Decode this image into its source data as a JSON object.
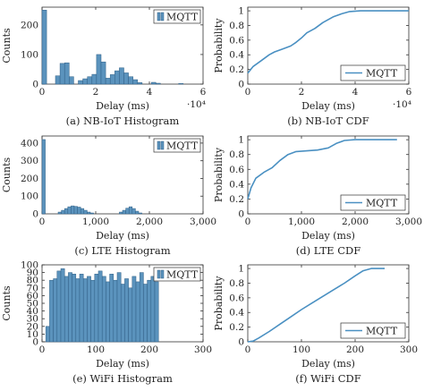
{
  "colors": {
    "series": "#4a90c2",
    "bar_fill": "#5b93bd",
    "bar_edge": "#2f5f86"
  },
  "chart_data": [
    {
      "id": "a",
      "type": "bar",
      "caption": "(a) NB-IoT Histogram",
      "xlabel": "Delay (ms)",
      "ylabel": "Counts",
      "x_exponent": "·10⁴",
      "xlim": [
        0,
        60000
      ],
      "ylim": [
        0,
        260
      ],
      "xticks": [
        0,
        20000,
        40000,
        60000
      ],
      "xtick_labels": [
        "0",
        "2",
        "4",
        "6"
      ],
      "yticks": [
        0,
        100,
        200
      ],
      "ytick_labels": [
        "0",
        "100",
        "200"
      ],
      "legend": "MQTT",
      "bin_width": 1700,
      "bin_starts": [
        0,
        5000,
        6700,
        8400,
        10100,
        13500,
        15200,
        16900,
        18600,
        20300,
        22000,
        23700,
        25400,
        27100,
        28800,
        30500,
        32200,
        33900,
        35600,
        40700,
        42400,
        50900
      ],
      "values": [
        250,
        28,
        70,
        72,
        25,
        12,
        18,
        25,
        33,
        100,
        75,
        20,
        32,
        45,
        55,
        38,
        25,
        15,
        5,
        6,
        3,
        2
      ]
    },
    {
      "id": "b",
      "type": "line",
      "caption": "(b) NB-IoT CDF",
      "xlabel": "Delay (ms)",
      "ylabel": "Probability",
      "x_exponent": "·10⁴",
      "xlim": [
        0,
        60000
      ],
      "ylim": [
        0,
        1.05
      ],
      "xticks": [
        0,
        20000,
        40000,
        60000
      ],
      "xtick_labels": [
        "0",
        "2",
        "4",
        "6"
      ],
      "yticks": [
        0,
        0.2,
        0.4,
        0.6,
        0.8,
        1
      ],
      "ytick_labels": [
        "0",
        "0.2",
        "0.4",
        "0.6",
        "0.8",
        "1"
      ],
      "legend": "MQTT",
      "x": [
        0,
        2000,
        5000,
        8000,
        10000,
        13000,
        16000,
        18000,
        20000,
        22000,
        25000,
        28000,
        32000,
        35000,
        38000,
        42000,
        50000,
        60000
      ],
      "y": [
        0.15,
        0.24,
        0.32,
        0.4,
        0.44,
        0.48,
        0.52,
        0.57,
        0.63,
        0.7,
        0.76,
        0.84,
        0.92,
        0.96,
        0.99,
        1.0,
        1.0,
        1.0
      ]
    },
    {
      "id": "c",
      "type": "bar",
      "caption": "(c) LTE Histogram",
      "xlabel": "Delay (ms)",
      "ylabel": "Counts",
      "xlim": [
        0,
        3000
      ],
      "ylim": [
        0,
        440
      ],
      "xticks": [
        0,
        1000,
        2000,
        3000
      ],
      "xtick_labels": [
        "0",
        "1,000",
        "2,000",
        "3,000"
      ],
      "yticks": [
        0,
        100,
        200,
        300,
        400
      ],
      "ytick_labels": [
        "0",
        "100",
        "200",
        "300",
        "400"
      ],
      "legend": "MQTT",
      "bin_width": 60,
      "bin_starts": [
        0,
        300,
        360,
        420,
        480,
        540,
        600,
        660,
        720,
        780,
        840,
        900,
        1440,
        1500,
        1560,
        1620,
        1680,
        1740,
        1800
      ],
      "values": [
        420,
        10,
        20,
        30,
        40,
        45,
        42,
        38,
        30,
        20,
        10,
        5,
        10,
        20,
        32,
        40,
        30,
        15,
        5
      ]
    },
    {
      "id": "d",
      "type": "line",
      "caption": "(d) LTE CDF",
      "xlabel": "Delay (ms)",
      "ylabel": "Probability",
      "xlim": [
        0,
        3000
      ],
      "ylim": [
        0,
        1.05
      ],
      "xticks": [
        0,
        1000,
        2000,
        3000
      ],
      "xtick_labels": [
        "0",
        "1,000",
        "2,000",
        "3,000"
      ],
      "yticks": [
        0,
        0.2,
        0.4,
        0.6,
        0.8,
        1
      ],
      "ytick_labels": [
        "0",
        "0.2",
        "0.4",
        "0.6",
        "0.8",
        "1"
      ],
      "legend": "MQTT",
      "x": [
        0,
        60,
        150,
        300,
        450,
        600,
        750,
        900,
        1100,
        1300,
        1500,
        1650,
        1800,
        2000,
        2400,
        2780
      ],
      "y": [
        0.2,
        0.35,
        0.48,
        0.56,
        0.62,
        0.72,
        0.8,
        0.84,
        0.85,
        0.86,
        0.89,
        0.95,
        0.99,
        1.0,
        1.0,
        1.0
      ]
    },
    {
      "id": "e",
      "type": "bar",
      "caption": "(e) WiFi Histogram",
      "xlabel": "Delay (ms)",
      "ylabel": "Counts",
      "xlim": [
        0,
        300
      ],
      "ylim": [
        0,
        100
      ],
      "xticks": [
        0,
        100,
        200,
        300
      ],
      "xtick_labels": [
        "0",
        "100",
        "200",
        "300"
      ],
      "yticks": [
        0,
        10,
        20,
        30,
        40,
        50,
        60,
        70,
        80,
        90,
        100
      ],
      "ytick_labels": [
        "0",
        "10",
        "20",
        "30",
        "40",
        "50",
        "60",
        "70",
        "80",
        "90",
        "100"
      ],
      "legend": "MQTT",
      "bin_width": 7,
      "bin_starts": [
        7,
        14,
        21,
        28,
        35,
        42,
        49,
        56,
        63,
        70,
        77,
        84,
        91,
        98,
        105,
        112,
        119,
        126,
        133,
        140,
        147,
        154,
        161,
        168,
        175,
        182,
        189,
        196,
        203,
        210
      ],
      "values": [
        20,
        80,
        82,
        92,
        95,
        85,
        90,
        88,
        82,
        88,
        82,
        85,
        80,
        88,
        92,
        85,
        78,
        88,
        80,
        90,
        75,
        82,
        70,
        85,
        78,
        90,
        75,
        80,
        85,
        78
      ]
    },
    {
      "id": "f",
      "type": "line",
      "caption": "(f) WiFi CDF",
      "xlabel": "Delay (ms)",
      "ylabel": "Probability",
      "xlim": [
        0,
        300
      ],
      "ylim": [
        0,
        1.05
      ],
      "xticks": [
        0,
        100,
        200,
        300
      ],
      "xtick_labels": [
        "0",
        "100",
        "200",
        "300"
      ],
      "yticks": [
        0,
        0.2,
        0.4,
        0.6,
        0.8,
        1
      ],
      "ytick_labels": [
        "0",
        "0.2",
        "0.4",
        "0.6",
        "0.8",
        "1"
      ],
      "legend": "MQTT",
      "x": [
        0,
        10,
        20,
        40,
        60,
        80,
        100,
        120,
        140,
        160,
        180,
        200,
        215,
        230,
        255
      ],
      "y": [
        0,
        0.01,
        0.05,
        0.14,
        0.24,
        0.34,
        0.44,
        0.53,
        0.62,
        0.71,
        0.8,
        0.9,
        0.97,
        1.0,
        1.0
      ]
    }
  ]
}
